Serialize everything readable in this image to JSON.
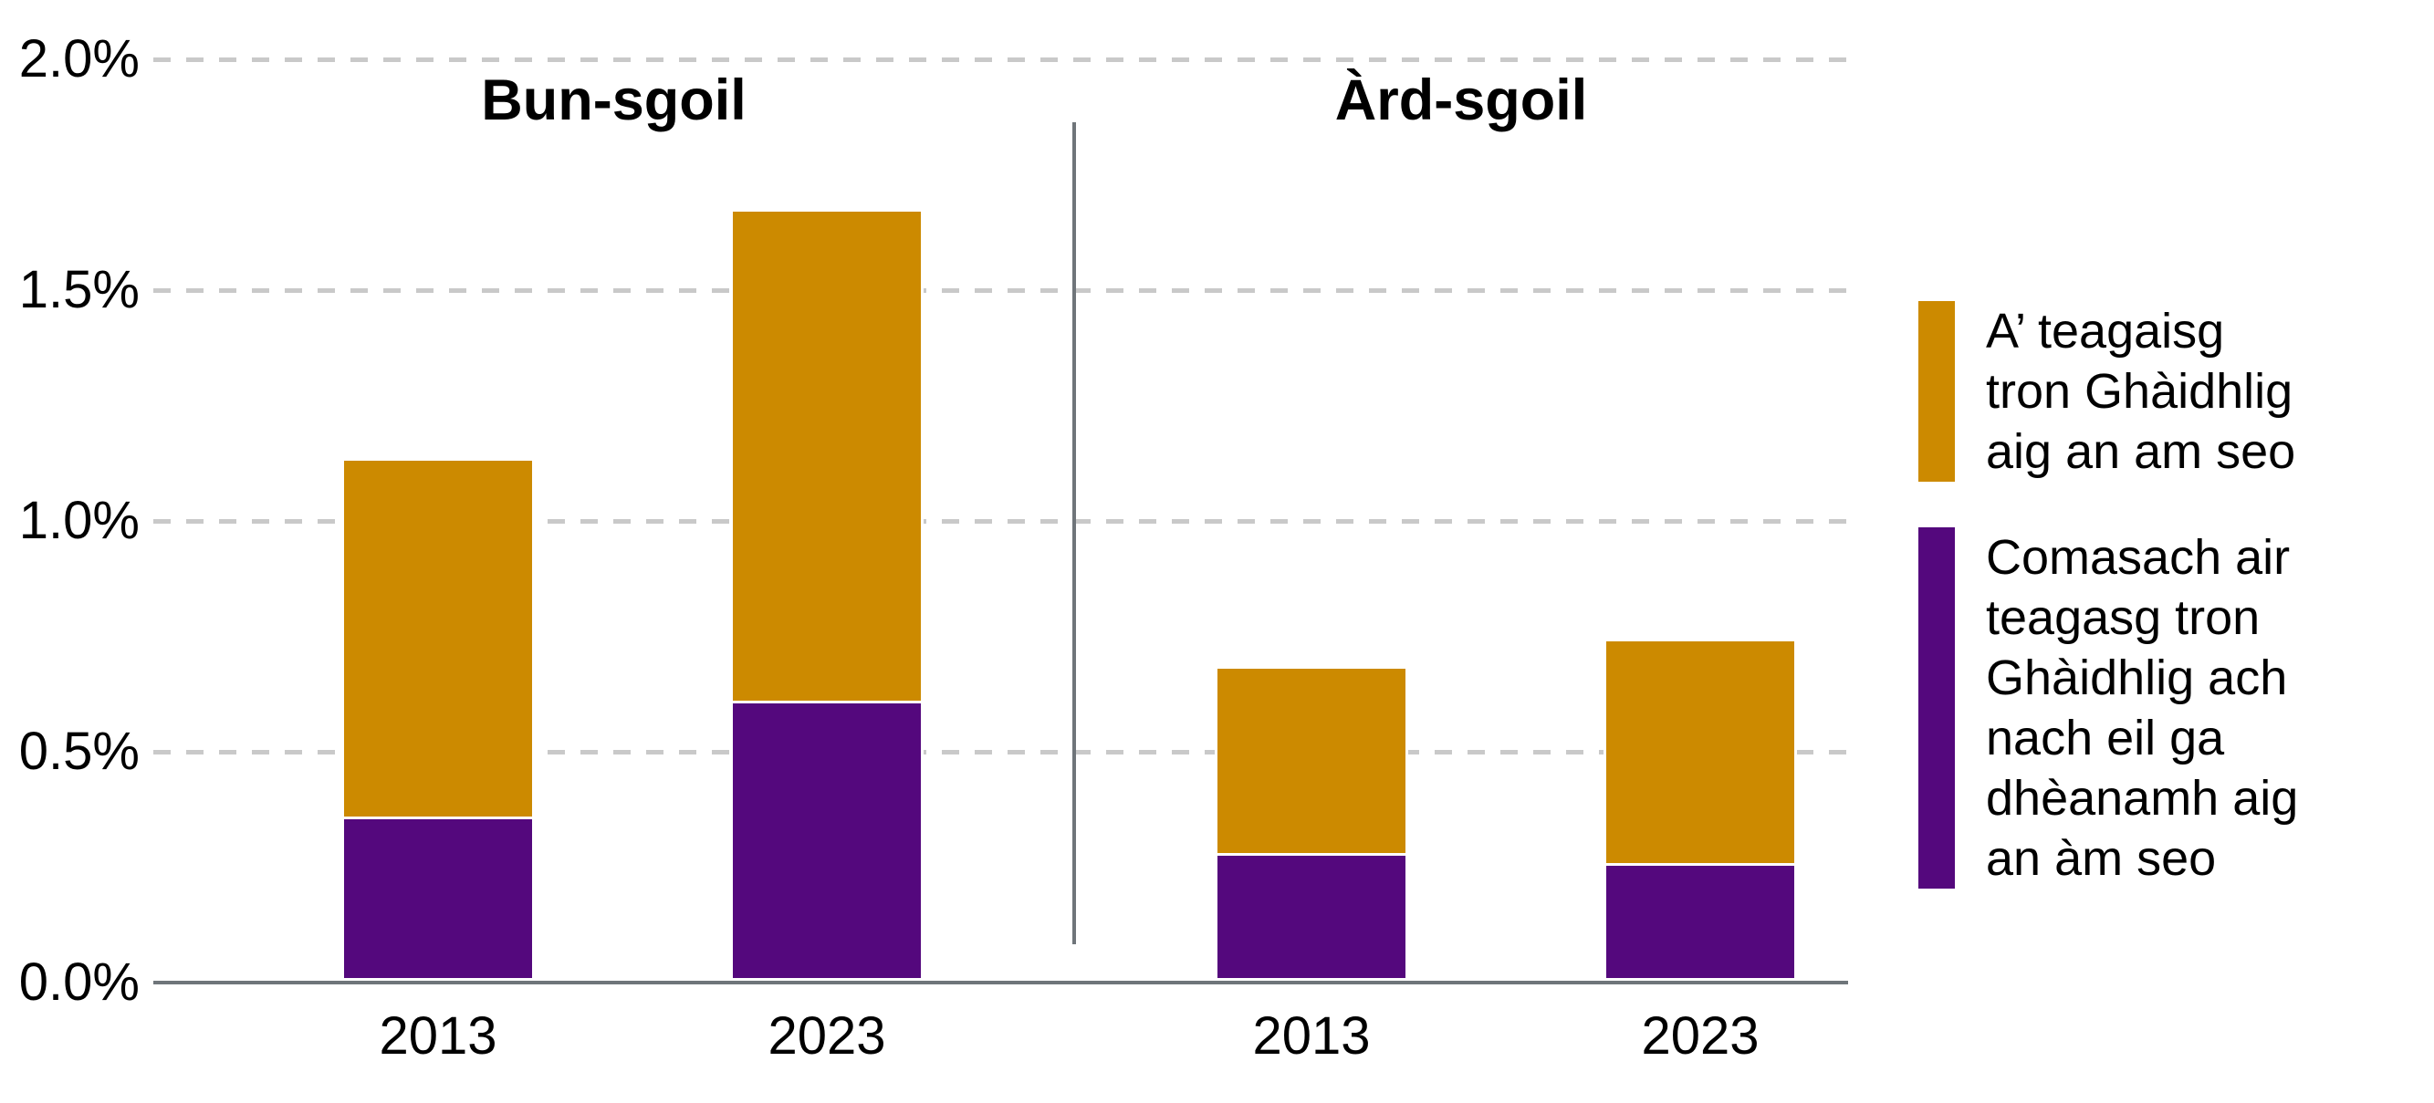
{
  "figure": {
    "background": "#FFFFFF"
  },
  "chart_data": {
    "type": "bar",
    "stacked": true,
    "unit": "percent",
    "ylim": [
      0,
      2.0
    ],
    "yticks": [
      {
        "value": 0.0,
        "label": "0.0%"
      },
      {
        "value": 0.5,
        "label": "0.5%"
      },
      {
        "value": 1.0,
        "label": "1.0%"
      },
      {
        "value": 1.5,
        "label": "1.5%"
      },
      {
        "value": 2.0,
        "label": "2.0%"
      }
    ],
    "grid": "horizontal-dashed",
    "legend_position": "right",
    "series": [
      {
        "id": "teaching",
        "name": "A’ teagaisg tron Ghàidhlig aig an am seo",
        "color": "#CC8A00",
        "stack_position": "top"
      },
      {
        "id": "capable",
        "name": "Comasach air teagasg tron Ghàidhlig ach nach eil ga dhèanamh aig an àm seo",
        "color": "#54087D",
        "stack_position": "bottom"
      }
    ],
    "panels": [
      {
        "title": "Bun-sgoil",
        "bars": [
          {
            "category": "2013",
            "capable": 0.35,
            "teaching": 0.77,
            "total": 1.12
          },
          {
            "category": "2023",
            "capable": 0.6,
            "teaching": 1.06,
            "total": 1.66
          }
        ]
      },
      {
        "title": "Àrd-sgoil",
        "bars": [
          {
            "category": "2013",
            "capable": 0.27,
            "teaching": 0.4,
            "total": 0.67
          },
          {
            "category": "2023",
            "capable": 0.25,
            "teaching": 0.48,
            "total": 0.73
          }
        ]
      }
    ]
  },
  "legend": {
    "items": [
      {
        "series_id": "teaching",
        "color": "#CC8A00",
        "label": "A’ teagaisg\ntron Ghàidhlig\naig an am seo"
      },
      {
        "series_id": "capable",
        "color": "#54087D",
        "label": "Comasach air\nteagasg tron\nGhàidhlig ach\nnach eil ga\ndhèanamh aig\nan àm seo"
      }
    ]
  },
  "colors": {
    "bar_orange": "#CC8A00",
    "bar_purple": "#54087D",
    "gridline": "#C9C9C9",
    "axis": "#6F757A",
    "text": "#000000",
    "bar_outline": "#FFFFFF"
  }
}
